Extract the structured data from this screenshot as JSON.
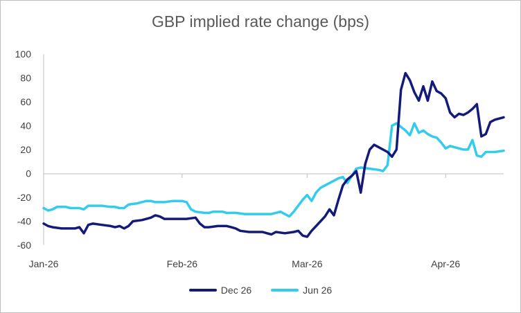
{
  "chart_data": {
    "type": "line",
    "title": "GBP implied rate change (bps)",
    "xlabel": "",
    "ylabel": "",
    "ylim": [
      -60,
      100
    ],
    "yticks": [
      "100",
      "80",
      "60",
      "40",
      "20",
      "0",
      "-20",
      "-40",
      "-60"
    ],
    "ytick_values": [
      100,
      80,
      60,
      40,
      20,
      0,
      -20,
      -40,
      -60
    ],
    "xlim": [
      "2026-01-01",
      "2026-04-14"
    ],
    "xticks": [
      {
        "label": "Jan-26",
        "date": "2026-01-01"
      },
      {
        "label": "Feb-26",
        "date": "2026-02-01"
      },
      {
        "label": "Mar-26",
        "date": "2026-03-01"
      },
      {
        "label": "Apr-26",
        "date": "2026-04-01"
      }
    ],
    "grid": false,
    "legend_position": "bottom",
    "series": [
      {
        "name": "Dec 26",
        "color": "#141a7a",
        "points": [
          [
            "2026-01-01",
            -42
          ],
          [
            "2026-01-02",
            -44
          ],
          [
            "2026-01-03",
            -45
          ],
          [
            "2026-01-05",
            -46
          ],
          [
            "2026-01-07",
            -46
          ],
          [
            "2026-01-08",
            -46
          ],
          [
            "2026-01-09",
            -45
          ],
          [
            "2026-01-10",
            -50
          ],
          [
            "2026-01-11",
            -43
          ],
          [
            "2026-01-12",
            -42
          ],
          [
            "2026-01-14",
            -43
          ],
          [
            "2026-01-16",
            -44
          ],
          [
            "2026-01-17",
            -45
          ],
          [
            "2026-01-18",
            -44
          ],
          [
            "2026-01-19",
            -46
          ],
          [
            "2026-01-20",
            -44
          ],
          [
            "2026-01-21",
            -40
          ],
          [
            "2026-01-23",
            -39
          ],
          [
            "2026-01-24",
            -38
          ],
          [
            "2026-01-25",
            -37
          ],
          [
            "2026-01-26",
            -35
          ],
          [
            "2026-01-27",
            -36
          ],
          [
            "2026-01-28",
            -38
          ],
          [
            "2026-01-30",
            -38
          ],
          [
            "2026-02-01",
            -38
          ],
          [
            "2026-02-02",
            -38
          ],
          [
            "2026-02-04",
            -37
          ],
          [
            "2026-02-05",
            -42
          ],
          [
            "2026-02-06",
            -45
          ],
          [
            "2026-02-07",
            -45
          ],
          [
            "2026-02-09",
            -44
          ],
          [
            "2026-02-11",
            -44
          ],
          [
            "2026-02-12",
            -45
          ],
          [
            "2026-02-13",
            -46
          ],
          [
            "2026-02-14",
            -48
          ],
          [
            "2026-02-16",
            -49
          ],
          [
            "2026-02-18",
            -49
          ],
          [
            "2026-02-19",
            -49
          ],
          [
            "2026-02-20",
            -50
          ],
          [
            "2026-02-21",
            -51
          ],
          [
            "2026-02-22",
            -49
          ],
          [
            "2026-02-24",
            -50
          ],
          [
            "2026-02-26",
            -49
          ],
          [
            "2026-02-27",
            -48
          ],
          [
            "2026-02-28",
            -52
          ],
          [
            "2026-03-01",
            -53
          ],
          [
            "2026-03-02",
            -48
          ],
          [
            "2026-03-04",
            -40
          ],
          [
            "2026-03-05",
            -36
          ],
          [
            "2026-03-06",
            -30
          ],
          [
            "2026-03-07",
            -35
          ],
          [
            "2026-03-08",
            -22
          ],
          [
            "2026-03-09",
            -10
          ],
          [
            "2026-03-10",
            -5
          ],
          [
            "2026-03-11",
            -2
          ],
          [
            "2026-03-12",
            2
          ],
          [
            "2026-03-13",
            -16
          ],
          [
            "2026-03-14",
            8
          ],
          [
            "2026-03-15",
            20
          ],
          [
            "2026-03-16",
            24
          ],
          [
            "2026-03-17",
            22
          ],
          [
            "2026-03-19",
            18
          ],
          [
            "2026-03-20",
            14
          ],
          [
            "2026-03-21",
            20
          ],
          [
            "2026-03-22",
            70
          ],
          [
            "2026-03-23",
            84
          ],
          [
            "2026-03-24",
            78
          ],
          [
            "2026-03-25",
            68
          ],
          [
            "2026-03-26",
            61
          ],
          [
            "2026-03-27",
            73
          ],
          [
            "2026-03-28",
            61
          ],
          [
            "2026-03-29",
            77
          ],
          [
            "2026-03-30",
            69
          ],
          [
            "2026-03-31",
            67
          ],
          [
            "2026-04-01",
            63
          ],
          [
            "2026-04-02",
            51
          ],
          [
            "2026-04-03",
            47
          ],
          [
            "2026-04-04",
            50
          ],
          [
            "2026-04-05",
            49
          ],
          [
            "2026-04-06",
            51
          ],
          [
            "2026-04-07",
            54
          ],
          [
            "2026-04-08",
            58
          ],
          [
            "2026-04-09",
            31
          ],
          [
            "2026-04-10",
            33
          ],
          [
            "2026-04-11",
            43
          ],
          [
            "2026-04-12",
            45
          ],
          [
            "2026-04-14",
            47
          ]
        ]
      },
      {
        "name": "Jun 26",
        "color": "#33ccee",
        "points": [
          [
            "2026-01-01",
            -29
          ],
          [
            "2026-01-02",
            -31
          ],
          [
            "2026-01-03",
            -30
          ],
          [
            "2026-01-04",
            -28
          ],
          [
            "2026-01-06",
            -28
          ],
          [
            "2026-01-07",
            -29
          ],
          [
            "2026-01-09",
            -29
          ],
          [
            "2026-01-10",
            -30
          ],
          [
            "2026-01-11",
            -27
          ],
          [
            "2026-01-12",
            -27
          ],
          [
            "2026-01-14",
            -27
          ],
          [
            "2026-01-16",
            -28
          ],
          [
            "2026-01-17",
            -28
          ],
          [
            "2026-01-18",
            -29
          ],
          [
            "2026-01-19",
            -29
          ],
          [
            "2026-01-20",
            -26
          ],
          [
            "2026-01-22",
            -25
          ],
          [
            "2026-01-24",
            -23
          ],
          [
            "2026-01-25",
            -23
          ],
          [
            "2026-01-26",
            -24
          ],
          [
            "2026-01-28",
            -24
          ],
          [
            "2026-01-30",
            -23
          ],
          [
            "2026-02-01",
            -23
          ],
          [
            "2026-02-02",
            -24
          ],
          [
            "2026-02-03",
            -30
          ],
          [
            "2026-02-04",
            -32
          ],
          [
            "2026-02-06",
            -33
          ],
          [
            "2026-02-07",
            -33
          ],
          [
            "2026-02-08",
            -32
          ],
          [
            "2026-02-10",
            -32
          ],
          [
            "2026-02-11",
            -33
          ],
          [
            "2026-02-13",
            -33
          ],
          [
            "2026-02-15",
            -34
          ],
          [
            "2026-02-16",
            -34
          ],
          [
            "2026-02-17",
            -34
          ],
          [
            "2026-02-19",
            -34
          ],
          [
            "2026-02-21",
            -34
          ],
          [
            "2026-02-23",
            -32
          ],
          [
            "2026-02-25",
            -36
          ],
          [
            "2026-02-26",
            -32
          ],
          [
            "2026-02-28",
            -22
          ],
          [
            "2026-03-01",
            -18
          ],
          [
            "2026-03-02",
            -23
          ],
          [
            "2026-03-03",
            -16
          ],
          [
            "2026-03-04",
            -12
          ],
          [
            "2026-03-05",
            -10
          ],
          [
            "2026-03-06",
            -8
          ],
          [
            "2026-03-07",
            -6
          ],
          [
            "2026-03-08",
            -4
          ],
          [
            "2026-03-09",
            -3
          ],
          [
            "2026-03-10",
            -8
          ],
          [
            "2026-03-11",
            -2
          ],
          [
            "2026-03-12",
            4
          ],
          [
            "2026-03-13",
            5
          ],
          [
            "2026-03-15",
            4
          ],
          [
            "2026-03-17",
            3
          ],
          [
            "2026-03-18",
            2
          ],
          [
            "2026-03-19",
            7
          ],
          [
            "2026-03-20",
            40
          ],
          [
            "2026-03-21",
            42
          ],
          [
            "2026-03-22",
            39
          ],
          [
            "2026-03-23",
            36
          ],
          [
            "2026-03-24",
            32
          ],
          [
            "2026-03-25",
            42
          ],
          [
            "2026-03-26",
            34
          ],
          [
            "2026-03-27",
            36
          ],
          [
            "2026-03-28",
            33
          ],
          [
            "2026-03-29",
            31
          ],
          [
            "2026-03-30",
            30
          ],
          [
            "2026-03-31",
            26
          ],
          [
            "2026-04-01",
            21
          ],
          [
            "2026-04-02",
            23
          ],
          [
            "2026-04-03",
            22
          ],
          [
            "2026-04-04",
            21
          ],
          [
            "2026-04-05",
            20
          ],
          [
            "2026-04-06",
            20
          ],
          [
            "2026-04-07",
            28
          ],
          [
            "2026-04-08",
            15
          ],
          [
            "2026-04-09",
            14
          ],
          [
            "2026-04-10",
            18
          ],
          [
            "2026-04-12",
            18
          ],
          [
            "2026-04-14",
            19
          ]
        ]
      }
    ]
  }
}
